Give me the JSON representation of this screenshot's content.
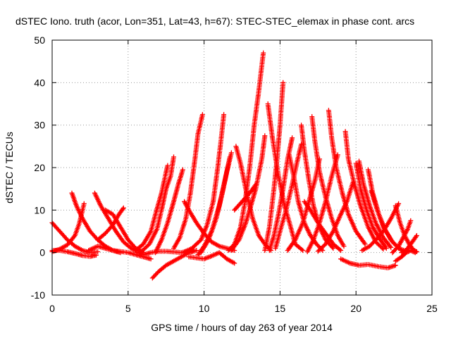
{
  "chart_data": {
    "type": "scatter",
    "title": "dSTEC Iono. truth (acor, Lon=351, Lat=43, h=67): STEC-STEC_elemax in phase cont. arcs",
    "xlabel": "GPS time / hours of day 263 of year 2014",
    "ylabel": "dSTEC  / TECUs",
    "xlim": [
      0,
      25
    ],
    "ylim": [
      -10,
      50
    ],
    "xticks": [
      "0",
      "5",
      "10",
      "15",
      "20",
      "25"
    ],
    "yticks": [
      "-10",
      "0",
      "10",
      "20",
      "30",
      "40",
      "50"
    ],
    "grid": true,
    "marker": "plus",
    "color": "#ff0000",
    "series": [
      {
        "arc": [
          [
            0.0,
            7.0
          ],
          [
            0.5,
            5.0
          ],
          [
            1.0,
            3.0
          ],
          [
            1.5,
            1.5
          ],
          [
            2.0,
            0.5
          ],
          [
            2.5,
            0.0
          ],
          [
            3.0,
            0.2
          ]
        ]
      },
      {
        "arc": [
          [
            0.0,
            0.2
          ],
          [
            0.5,
            0.8
          ],
          [
            1.0,
            1.8
          ],
          [
            1.5,
            4.0
          ],
          [
            1.8,
            7.0
          ],
          [
            2.1,
            11.5
          ]
        ]
      },
      {
        "arc": [
          [
            0.0,
            0.5
          ],
          [
            0.5,
            0.5
          ],
          [
            1.0,
            0.2
          ],
          [
            1.5,
            -0.2
          ],
          [
            2.0,
            -0.7
          ],
          [
            2.5,
            -0.9
          ],
          [
            2.9,
            -0.6
          ]
        ]
      },
      {
        "arc": [
          [
            1.3,
            14.0
          ],
          [
            1.6,
            11.0
          ],
          [
            2.0,
            8.0
          ],
          [
            2.5,
            5.0
          ],
          [
            3.0,
            3.0
          ],
          [
            3.5,
            1.5
          ],
          [
            4.0,
            0.5
          ],
          [
            4.5,
            0.0
          ]
        ]
      },
      {
        "arc": [
          [
            2.8,
            14.0
          ],
          [
            3.2,
            11.0
          ],
          [
            3.7,
            8.0
          ],
          [
            4.2,
            5.0
          ],
          [
            4.7,
            2.5
          ],
          [
            5.2,
            1.0
          ],
          [
            5.6,
            0.3
          ]
        ]
      },
      {
        "arc": [
          [
            3.0,
            3.0
          ],
          [
            3.5,
            4.5
          ],
          [
            4.0,
            6.5
          ],
          [
            4.4,
            9.0
          ],
          [
            4.7,
            10.5
          ]
        ]
      },
      {
        "arc": [
          [
            2.4,
            0.5
          ],
          [
            3.0,
            1.5
          ],
          [
            3.5,
            1.0
          ],
          [
            4.0,
            0.5
          ],
          [
            5.0,
            0.0
          ],
          [
            6.0,
            -1.0
          ],
          [
            6.5,
            -1.5
          ]
        ]
      },
      {
        "arc": [
          [
            3.5,
            10.0
          ],
          [
            4.0,
            9.0
          ],
          [
            4.5,
            6.0
          ],
          [
            5.0,
            3.0
          ],
          [
            5.5,
            1.0
          ],
          [
            6.0,
            0.0
          ]
        ]
      },
      {
        "arc": [
          [
            5.5,
            0.5
          ],
          [
            6.0,
            2.0
          ],
          [
            6.5,
            5.0
          ],
          [
            6.8,
            9.0
          ],
          [
            7.2,
            14.0
          ],
          [
            7.6,
            20.5
          ]
        ]
      },
      {
        "arc": [
          [
            5.9,
            0.3
          ],
          [
            6.4,
            2.0
          ],
          [
            6.9,
            5.5
          ],
          [
            7.2,
            10.0
          ],
          [
            7.5,
            15.0
          ],
          [
            7.8,
            18.0
          ],
          [
            8.0,
            22.5
          ]
        ]
      },
      {
        "arc": [
          [
            6.8,
            0.0
          ],
          [
            7.2,
            3.0
          ],
          [
            7.6,
            7.0
          ],
          [
            8.0,
            12.0
          ],
          [
            8.3,
            16.0
          ],
          [
            8.6,
            19.5
          ]
        ]
      },
      {
        "arc": [
          [
            6.6,
            -6.0
          ],
          [
            7.0,
            -4.5
          ],
          [
            7.5,
            -3.0
          ],
          [
            8.0,
            -2.0
          ],
          [
            8.5,
            -1.0
          ],
          [
            9.0,
            0.0
          ],
          [
            9.5,
            0.5
          ]
        ]
      },
      {
        "arc": [
          [
            5.7,
            0.0
          ],
          [
            6.0,
            -0.5
          ],
          [
            6.5,
            0.0
          ],
          [
            7.0,
            0.3
          ],
          [
            7.5,
            0.3
          ],
          [
            8.5,
            0.0
          ],
          [
            9.3,
            0.5
          ]
        ]
      },
      {
        "arc": [
          [
            8.0,
            1.0
          ],
          [
            8.4,
            3.5
          ],
          [
            8.8,
            8.0
          ],
          [
            9.1,
            14.0
          ],
          [
            9.4,
            22.0
          ],
          [
            9.6,
            28.0
          ],
          [
            9.9,
            32.5
          ]
        ]
      },
      {
        "arc": [
          [
            8.6,
            0.0
          ],
          [
            9.2,
            1.0
          ],
          [
            9.8,
            3.0
          ],
          [
            10.2,
            6.5
          ],
          [
            10.6,
            12.0
          ],
          [
            10.9,
            20.0
          ],
          [
            11.1,
            26.0
          ],
          [
            11.3,
            32.5
          ]
        ]
      },
      {
        "arc": [
          [
            8.7,
            12.0
          ],
          [
            9.0,
            10.0
          ],
          [
            9.5,
            7.0
          ],
          [
            10.0,
            4.5
          ],
          [
            10.5,
            2.5
          ],
          [
            11.0,
            1.5
          ],
          [
            12.0,
            0.5
          ]
        ]
      },
      {
        "arc": [
          [
            9.6,
            -0.5
          ],
          [
            10.0,
            1.5
          ],
          [
            10.5,
            5.0
          ],
          [
            11.0,
            11.0
          ],
          [
            11.4,
            17.5
          ],
          [
            11.7,
            22.5
          ]
        ]
      },
      {
        "arc": [
          [
            9.8,
            0.0
          ],
          [
            10.3,
            3.0
          ],
          [
            10.8,
            8.0
          ],
          [
            11.2,
            14.0
          ],
          [
            11.5,
            19.0
          ],
          [
            11.8,
            23.5
          ]
        ]
      },
      {
        "arc": [
          [
            9.0,
            -1.0
          ],
          [
            10.0,
            -1.5
          ],
          [
            10.5,
            -0.8
          ],
          [
            11.0,
            0.0
          ],
          [
            11.5,
            -1.5
          ],
          [
            12.0,
            -2.5
          ]
        ]
      },
      {
        "arc": [
          [
            11.6,
            0.5
          ],
          [
            12.0,
            2.0
          ],
          [
            12.4,
            6.0
          ],
          [
            12.7,
            12.0
          ],
          [
            13.0,
            20.0
          ],
          [
            13.3,
            30.0
          ],
          [
            13.6,
            38.0
          ],
          [
            13.9,
            47.0
          ]
        ]
      },
      {
        "arc": [
          [
            11.8,
            0.5
          ],
          [
            12.3,
            3.0
          ],
          [
            12.7,
            6.5
          ],
          [
            13.0,
            10.0
          ],
          [
            13.4,
            15.0
          ],
          [
            13.8,
            22.0
          ],
          [
            14.0,
            27.5
          ]
        ]
      },
      {
        "arc": [
          [
            12.1,
            25.0
          ],
          [
            12.4,
            21.0
          ],
          [
            12.8,
            14.0
          ],
          [
            13.2,
            8.0
          ],
          [
            13.6,
            4.0
          ],
          [
            14.0,
            2.0
          ],
          [
            14.4,
            0.5
          ]
        ]
      },
      {
        "arc": [
          [
            12.0,
            10.0
          ],
          [
            12.5,
            12.0
          ],
          [
            13.0,
            14.0
          ],
          [
            13.4,
            16.0
          ]
        ]
      },
      {
        "arc": [
          [
            14.0,
            0.5
          ],
          [
            14.3,
            6.0
          ],
          [
            14.6,
            15.0
          ],
          [
            14.8,
            22.0
          ],
          [
            15.0,
            30.0
          ],
          [
            15.2,
            40.0
          ]
        ]
      },
      {
        "arc": [
          [
            14.2,
            35.0
          ],
          [
            14.5,
            27.0
          ],
          [
            14.9,
            18.0
          ],
          [
            15.3,
            11.0
          ],
          [
            15.7,
            6.0
          ],
          [
            16.0,
            2.0
          ],
          [
            16.5,
            0.5
          ]
        ]
      },
      {
        "arc": [
          [
            14.3,
            0.5
          ],
          [
            14.6,
            4.0
          ],
          [
            14.9,
            9.0
          ],
          [
            15.2,
            15.0
          ],
          [
            15.5,
            22.0
          ],
          [
            15.8,
            27.0
          ]
        ]
      },
      {
        "arc": [
          [
            15.6,
            23.0
          ],
          [
            15.9,
            18.0
          ],
          [
            16.2,
            12.0
          ],
          [
            16.6,
            7.0
          ],
          [
            17.0,
            4.0
          ],
          [
            17.4,
            2.0
          ],
          [
            17.8,
            0.5
          ]
        ]
      },
      {
        "arc": [
          [
            14.7,
            1.0
          ],
          [
            15.0,
            5.0
          ],
          [
            15.4,
            10.0
          ],
          [
            15.8,
            16.0
          ],
          [
            16.1,
            21.0
          ],
          [
            16.4,
            25.5
          ]
        ]
      },
      {
        "arc": [
          [
            16.4,
            30.0
          ],
          [
            16.6,
            24.0
          ],
          [
            16.9,
            17.0
          ],
          [
            17.2,
            11.0
          ],
          [
            17.6,
            6.0
          ],
          [
            18.0,
            3.0
          ],
          [
            18.5,
            1.0
          ]
        ]
      },
      {
        "arc": [
          [
            15.5,
            0.5
          ],
          [
            16.0,
            3.0
          ],
          [
            16.5,
            7.0
          ],
          [
            16.9,
            12.0
          ],
          [
            17.3,
            17.0
          ],
          [
            17.6,
            22.0
          ]
        ]
      },
      {
        "arc": [
          [
            16.8,
            0.2
          ],
          [
            17.2,
            3.0
          ],
          [
            17.6,
            7.0
          ],
          [
            18.0,
            12.0
          ],
          [
            18.4,
            18.0
          ],
          [
            18.8,
            23.0
          ]
        ]
      },
      {
        "arc": [
          [
            16.6,
            12.0
          ],
          [
            17.0,
            10.0
          ],
          [
            17.5,
            7.0
          ],
          [
            18.0,
            4.5
          ],
          [
            18.5,
            2.0
          ],
          [
            19.0,
            0.5
          ]
        ]
      },
      {
        "arc": [
          [
            17.1,
            32.0
          ],
          [
            17.3,
            26.0
          ],
          [
            17.6,
            19.0
          ],
          [
            18.0,
            13.0
          ],
          [
            18.4,
            8.0
          ],
          [
            18.8,
            4.0
          ],
          [
            19.2,
            1.5
          ]
        ]
      },
      {
        "arc": [
          [
            18.2,
            33.5
          ],
          [
            18.4,
            27.0
          ],
          [
            18.7,
            20.0
          ],
          [
            19.1,
            14.0
          ],
          [
            19.5,
            9.0
          ],
          [
            20.0,
            5.0
          ],
          [
            20.6,
            2.0
          ]
        ]
      },
      {
        "arc": [
          [
            17.5,
            0.3
          ],
          [
            18.0,
            2.0
          ],
          [
            18.5,
            5.0
          ],
          [
            19.0,
            9.0
          ],
          [
            19.4,
            12.0
          ],
          [
            19.8,
            16.5
          ]
        ]
      },
      {
        "arc": [
          [
            19.3,
            28.5
          ],
          [
            19.5,
            22.0
          ],
          [
            19.9,
            16.0
          ],
          [
            20.3,
            11.0
          ],
          [
            20.8,
            6.0
          ],
          [
            21.3,
            2.5
          ],
          [
            21.8,
            0.8
          ]
        ]
      },
      {
        "arc": [
          [
            20.0,
            21.0
          ],
          [
            20.3,
            15.0
          ],
          [
            20.7,
            10.0
          ],
          [
            21.1,
            6.0
          ],
          [
            21.6,
            3.0
          ],
          [
            22.0,
            1.0
          ]
        ]
      },
      {
        "arc": [
          [
            20.2,
            21.5
          ],
          [
            20.5,
            16.0
          ],
          [
            20.9,
            11.0
          ],
          [
            21.3,
            7.0
          ],
          [
            21.8,
            3.5
          ],
          [
            22.3,
            1.2
          ]
        ]
      },
      {
        "arc": [
          [
            20.8,
            19.5
          ],
          [
            21.1,
            14.0
          ],
          [
            21.5,
            9.0
          ],
          [
            21.9,
            5.5
          ],
          [
            22.4,
            2.5
          ],
          [
            22.9,
            0.8
          ]
        ]
      },
      {
        "arc": [
          [
            21.0,
            14.5
          ],
          [
            21.4,
            10.0
          ],
          [
            21.8,
            6.0
          ],
          [
            22.3,
            3.0
          ],
          [
            22.8,
            1.0
          ],
          [
            23.3,
            0.3
          ]
        ]
      },
      {
        "arc": [
          [
            20.4,
            0.5
          ],
          [
            20.9,
            1.5
          ],
          [
            21.3,
            3.0
          ],
          [
            21.8,
            5.0
          ],
          [
            22.3,
            8.0
          ],
          [
            22.8,
            11.5
          ]
        ]
      },
      {
        "arc": [
          [
            19.0,
            -1.5
          ],
          [
            19.6,
            -2.5
          ],
          [
            20.2,
            -3.0
          ],
          [
            20.8,
            -2.8
          ],
          [
            21.5,
            -3.3
          ],
          [
            22.1,
            -3.6
          ],
          [
            22.6,
            -3.0
          ]
        ]
      },
      {
        "arc": [
          [
            22.6,
            11.0
          ],
          [
            22.9,
            7.0
          ],
          [
            23.2,
            4.0
          ],
          [
            23.5,
            2.0
          ],
          [
            23.8,
            0.5
          ],
          [
            24.0,
            0.2
          ]
        ]
      },
      {
        "arc": [
          [
            22.4,
            0.0
          ],
          [
            22.8,
            1.5
          ],
          [
            23.1,
            3.5
          ],
          [
            23.4,
            5.5
          ],
          [
            23.6,
            7.5
          ]
        ]
      },
      {
        "arc": [
          [
            23.0,
            0.0
          ],
          [
            23.3,
            0.5
          ],
          [
            23.6,
            2.0
          ],
          [
            23.8,
            3.0
          ],
          [
            24.0,
            4.0
          ]
        ]
      },
      {
        "arc": [
          [
            22.6,
            -2.0
          ],
          [
            23.0,
            -1.0
          ],
          [
            23.3,
            0.0
          ],
          [
            23.6,
            0.5
          ],
          [
            23.9,
            0.0
          ]
        ]
      }
    ]
  }
}
